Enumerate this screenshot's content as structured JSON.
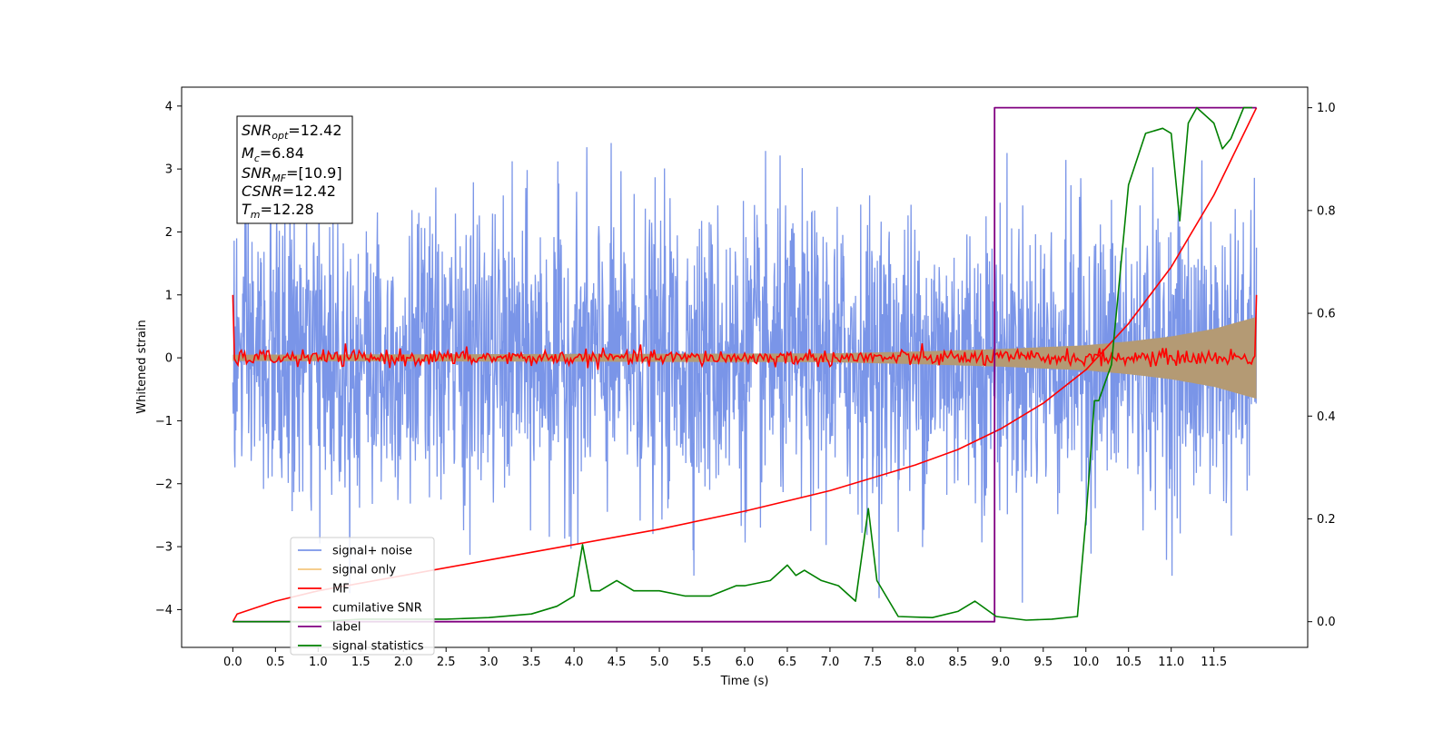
{
  "chart_data": {
    "type": "line",
    "xlabel": "Time (s)",
    "ylabel": "Whitened strain",
    "xlim": [
      -0.6,
      12.6
    ],
    "ylim": [
      -4.6,
      4.3
    ],
    "ylim_right": [
      -0.05,
      1.04
    ],
    "x_ticks": [
      "0.0",
      "0.5",
      "1.0",
      "1.5",
      "2.0",
      "2.5",
      "3.0",
      "3.5",
      "4.0",
      "4.5",
      "5.0",
      "5.5",
      "6.0",
      "6.5",
      "7.0",
      "7.5",
      "8.0",
      "8.5",
      "9.0",
      "9.5",
      "10.0",
      "10.5",
      "11.0",
      "11.5"
    ],
    "y_ticks_left": [
      "4",
      "3",
      "2",
      "1",
      "0",
      "−1",
      "−2",
      "−3",
      "−4"
    ],
    "y_ticks_right": [
      "1.0",
      "0.8",
      "0.6",
      "0.4",
      "0.2",
      "0.0"
    ],
    "grid": false,
    "legend_position": "lower-left",
    "legend": [
      "signal+ noise",
      "signal only",
      "MF",
      "cumilative SNR",
      "label",
      "signal statistics"
    ],
    "info_box": {
      "snr_opt": "12.42",
      "mc": "6.84",
      "snr_mf": "[10.9]",
      "csnr": "12.42",
      "tm": "12.28"
    },
    "colors": {
      "signal_noise": "#7a95e8",
      "signal_only": "#f5c77e",
      "mf": "#ff0000",
      "csnr": "#ff0000",
      "label": "#800080",
      "statistics": "#008000",
      "signal_band": "#b49a74"
    },
    "series": [
      {
        "name": "signal+ noise",
        "axis": "left",
        "noise_sigma": 1.15,
        "range": [
          -4.15,
          3.9
        ],
        "t_end": 12.0
      },
      {
        "name": "signal only",
        "axis": "left",
        "envelope_x": [
          0.0,
          7.0,
          8.0,
          9.0,
          10.0,
          10.5,
          11.0,
          11.5,
          12.0
        ],
        "envelope_y": [
          0.05,
          0.07,
          0.1,
          0.14,
          0.2,
          0.26,
          0.34,
          0.46,
          0.65
        ]
      },
      {
        "name": "MF",
        "axis": "left",
        "x_start": 0.0,
        "x_end": 12.0,
        "start_value": 1.0,
        "end_value": 1.0,
        "noise_amplitude": 0.08
      },
      {
        "name": "cumilative SNR",
        "axis": "right",
        "x": [
          0.0,
          0.05,
          0.5,
          1.0,
          2.0,
          3.0,
          4.0,
          5.0,
          6.0,
          7.0,
          8.0,
          8.5,
          9.0,
          9.5,
          10.0,
          10.5,
          11.0,
          11.5,
          12.0
        ],
        "y": [
          0.0,
          0.015,
          0.04,
          0.06,
          0.09,
          0.12,
          0.15,
          0.18,
          0.215,
          0.255,
          0.305,
          0.335,
          0.375,
          0.425,
          0.49,
          0.58,
          0.69,
          0.83,
          1.0
        ]
      },
      {
        "name": "label",
        "axis": "right",
        "x": [
          0.0,
          8.87,
          8.87,
          8.93,
          8.93,
          12.0
        ],
        "y": [
          0.0,
          0.0,
          0.0,
          0.0,
          1.0,
          1.0
        ]
      },
      {
        "name": "signal statistics",
        "axis": "right",
        "x": [
          0.0,
          0.5,
          1.0,
          1.5,
          2.0,
          2.5,
          3.0,
          3.5,
          3.8,
          4.0,
          4.1,
          4.2,
          4.3,
          4.5,
          4.7,
          5.0,
          5.3,
          5.6,
          5.9,
          6.0,
          6.3,
          6.5,
          6.6,
          6.7,
          6.9,
          7.1,
          7.3,
          7.45,
          7.55,
          7.8,
          8.2,
          8.5,
          8.7,
          8.95,
          9.3,
          9.6,
          9.9,
          10.0,
          10.1,
          10.15,
          10.3,
          10.5,
          10.7,
          10.9,
          11.0,
          11.1,
          11.2,
          11.3,
          11.5,
          11.6,
          11.7,
          11.85,
          11.95
        ],
        "y": [
          0.0,
          0.0,
          0.0,
          0.005,
          0.005,
          0.005,
          0.008,
          0.015,
          0.03,
          0.05,
          0.15,
          0.06,
          0.06,
          0.08,
          0.06,
          0.06,
          0.05,
          0.05,
          0.07,
          0.07,
          0.08,
          0.11,
          0.09,
          0.1,
          0.08,
          0.07,
          0.04,
          0.22,
          0.08,
          0.01,
          0.008,
          0.02,
          0.04,
          0.01,
          0.003,
          0.005,
          0.01,
          0.2,
          0.43,
          0.43,
          0.5,
          0.85,
          0.95,
          0.96,
          0.95,
          0.78,
          0.97,
          1.0,
          0.97,
          0.92,
          0.94,
          1.0,
          1.0
        ]
      }
    ]
  }
}
